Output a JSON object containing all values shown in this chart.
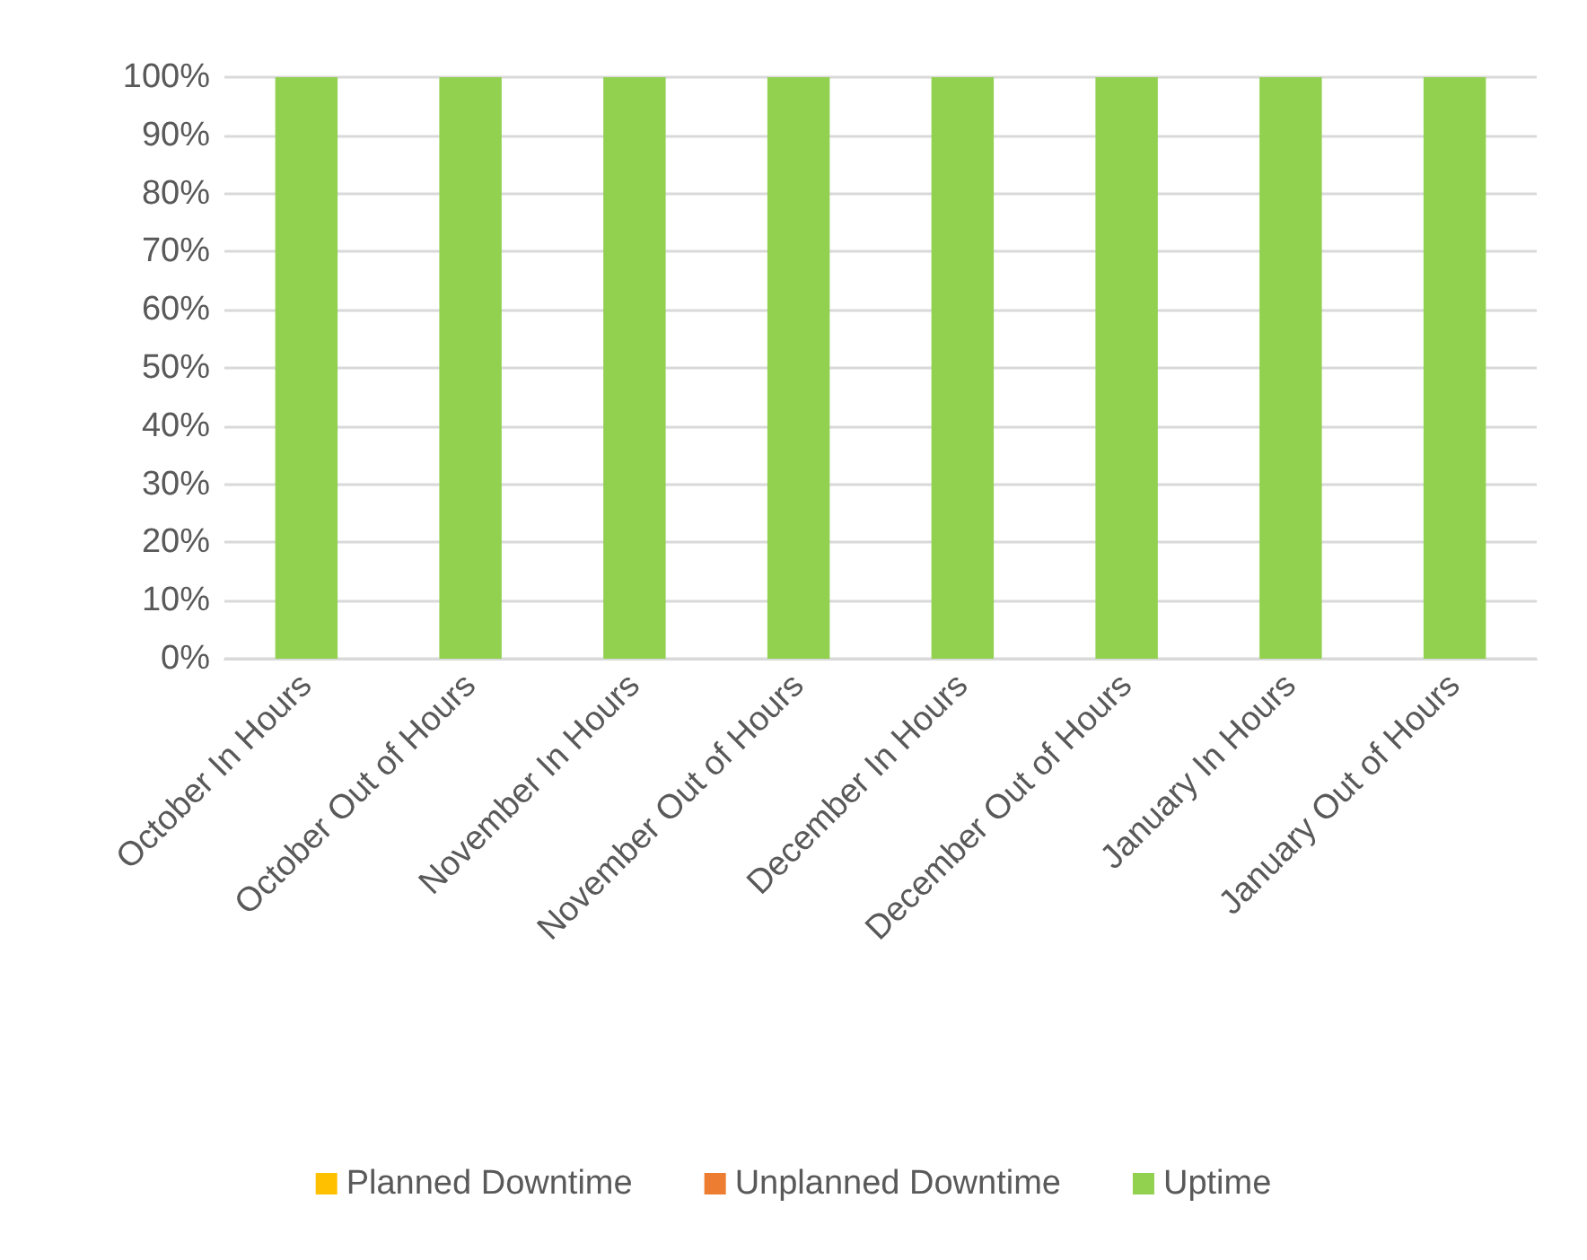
{
  "chart_data": {
    "type": "bar",
    "stacked": true,
    "categories": [
      "October In Hours",
      "October Out of Hours",
      "November In Hours",
      "November Out of Hours",
      "December In Hours",
      "December Out of Hours",
      "January In Hours",
      "January Out of Hours"
    ],
    "series": [
      {
        "name": "Planned Downtime",
        "color": "#ffc000",
        "values": [
          0,
          0,
          0,
          0,
          0,
          0,
          0,
          0
        ]
      },
      {
        "name": "Unplanned Downtime",
        "color": "#ed7d31",
        "values": [
          0,
          0,
          0,
          0,
          0,
          0,
          0,
          0
        ]
      },
      {
        "name": "Uptime",
        "color": "#92d050",
        "values": [
          100,
          100,
          100,
          100,
          100,
          100,
          100,
          100
        ]
      }
    ],
    "ylim": [
      0,
      100
    ],
    "yticks": [
      {
        "value": 0,
        "label": "0%"
      },
      {
        "value": 10,
        "label": "10%"
      },
      {
        "value": 20,
        "label": "20%"
      },
      {
        "value": 30,
        "label": "30%"
      },
      {
        "value": 40,
        "label": "40%"
      },
      {
        "value": 50,
        "label": "50%"
      },
      {
        "value": 60,
        "label": "60%"
      },
      {
        "value": 70,
        "label": "70%"
      },
      {
        "value": 80,
        "label": "80%"
      },
      {
        "value": 90,
        "label": "90%"
      },
      {
        "value": 100,
        "label": "100%"
      }
    ],
    "grid": "y",
    "legend": "bottom"
  }
}
